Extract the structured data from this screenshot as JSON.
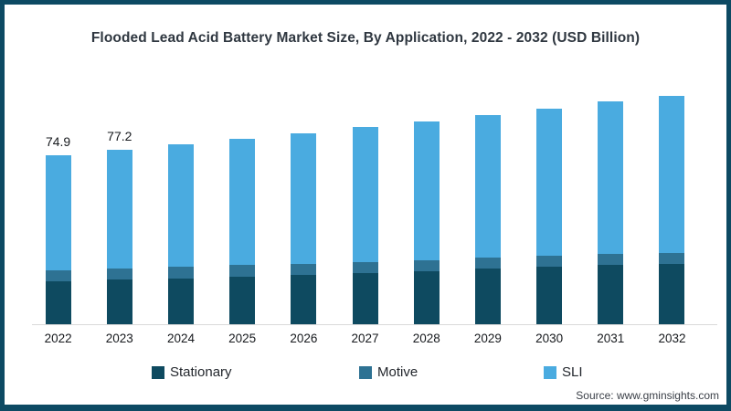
{
  "frame": {
    "border_color": "#0d4a63",
    "background_color": "#ffffff"
  },
  "title": "Flooded Lead Acid Battery Market Size, By Application, 2022 - 2032 (USD Billion)",
  "source": "Source: www.gminsights.com",
  "chart_data": {
    "type": "bar",
    "stacked": true,
    "title": "Flooded Lead Acid Battery Market Size, By Application, 2022 - 2032 (USD Billion)",
    "unit": "USD Billion",
    "xlabel": "",
    "ylabel": "",
    "grid": false,
    "legend_position": "bottom",
    "axis_line_color": "#d9d9d9",
    "categories": [
      "2022",
      "2023",
      "2024",
      "2025",
      "2026",
      "2027",
      "2028",
      "2029",
      "2030",
      "2031",
      "2032"
    ],
    "series": [
      {
        "name": "Stationary",
        "color": "#0e4a60",
        "values": [
          19.0,
          19.8,
          20.4,
          21.2,
          21.8,
          22.6,
          23.4,
          24.6,
          25.4,
          26.2,
          26.6
        ]
      },
      {
        "name": "Motive",
        "color": "#2e7293",
        "values": [
          4.9,
          4.8,
          5.0,
          5.0,
          4.8,
          4.8,
          4.8,
          4.8,
          4.8,
          4.8,
          5.2
        ]
      },
      {
        "name": "SLI",
        "color": "#4aabe0",
        "values": [
          51.0,
          52.6,
          54.5,
          56.1,
          58.1,
          60.1,
          61.7,
          63.4,
          65.4,
          67.8,
          69.4
        ]
      }
    ],
    "totals": [
      74.9,
      77.2,
      79.9,
      82.3,
      84.7,
      87.5,
      89.9,
      92.8,
      95.6,
      98.8,
      101.2
    ],
    "data_labels": [
      "74.9",
      "77.2",
      null,
      null,
      null,
      null,
      null,
      null,
      null,
      null,
      null
    ],
    "ylim": [
      0,
      109
    ]
  }
}
